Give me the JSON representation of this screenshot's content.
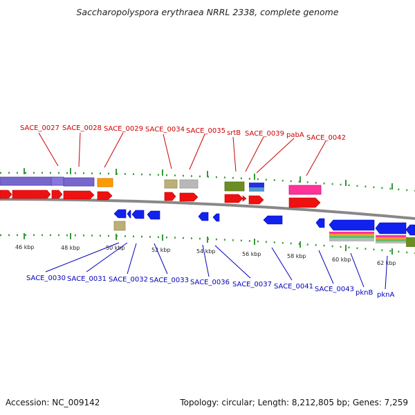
{
  "title": "Saccharopolyspora erythraea NRRL 2338, complete genome",
  "accession": "Accession: NC_009142",
  "topology": "Topology: circular; Length: 8,212,805 bp; Genes: 7,259",
  "tick_labels": [
    "46 kbp",
    "48 kbp",
    "50 kbp",
    "52 kbp",
    "54 kbp",
    "56 kbp",
    "58 kbp",
    "60 kbp",
    "62 kbp"
  ],
  "top_labels": [
    "SACE_0027",
    "SACE_0028",
    "SACE_0029",
    "SACE_0034",
    "SACE_0035",
    "srtB",
    "SACE_0039",
    "pabA",
    "SACE_0042"
  ],
  "bottom_labels": [
    "SACE_0030",
    "SACE_0031",
    "SACE_0032",
    "SACE_0033",
    "SACE_0036",
    "SACE_0037",
    "SACE_0041",
    "SACE_0043",
    "pknB",
    "pknA"
  ],
  "colors": {
    "forward_gene": "#ee1111",
    "reverse_gene": "#1122ee",
    "purple": "#7766cc",
    "orange": "#ff9900",
    "khaki": "#bbb077",
    "gray": "#b8b8b8",
    "olive": "#6b8e23",
    "pink": "#ff3399",
    "label_top": "#cc0000",
    "label_bottom": "#0000bb",
    "tick": "#339933"
  }
}
